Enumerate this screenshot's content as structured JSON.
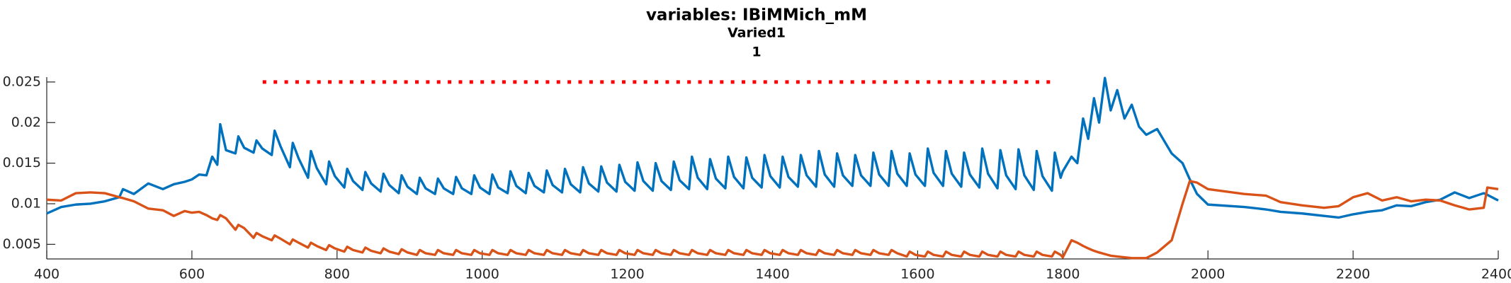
{
  "chart_data": {
    "type": "line",
    "title": "variables: IBiMMich_mM",
    "subtitle_lines": [
      "Varied1",
      "1"
    ],
    "xlim": [
      400,
      2400
    ],
    "xticks": [
      400,
      600,
      800,
      1000,
      1200,
      1400,
      1600,
      1800,
      2000,
      2200,
      2400
    ],
    "ylim": [
      0.0032,
      0.0256
    ],
    "yticks": [
      0.005,
      0.01,
      0.015,
      0.02,
      0.025
    ],
    "grid": false,
    "x": [
      400,
      420,
      440,
      460,
      480,
      500,
      505,
      520,
      540,
      560,
      575,
      590,
      600,
      610,
      620,
      628,
      635,
      639,
      647,
      660,
      664,
      672,
      685,
      689,
      697,
      710,
      714,
      722,
      735,
      739,
      747,
      760,
      764,
      772,
      785,
      789,
      797,
      810,
      814,
      822,
      835,
      839,
      847,
      860,
      864,
      872,
      885,
      889,
      897,
      910,
      914,
      922,
      935,
      939,
      947,
      960,
      964,
      972,
      985,
      989,
      997,
      1010,
      1014,
      1022,
      1035,
      1039,
      1047,
      1060,
      1064,
      1072,
      1085,
      1089,
      1097,
      1110,
      1114,
      1122,
      1135,
      1139,
      1147,
      1160,
      1164,
      1172,
      1185,
      1189,
      1197,
      1210,
      1214,
      1222,
      1235,
      1239,
      1247,
      1260,
      1264,
      1272,
      1285,
      1289,
      1297,
      1310,
      1314,
      1322,
      1335,
      1339,
      1347,
      1360,
      1364,
      1372,
      1385,
      1389,
      1397,
      1410,
      1414,
      1422,
      1435,
      1439,
      1447,
      1460,
      1464,
      1472,
      1485,
      1489,
      1497,
      1510,
      1514,
      1522,
      1535,
      1539,
      1547,
      1560,
      1564,
      1572,
      1585,
      1589,
      1597,
      1610,
      1614,
      1622,
      1635,
      1639,
      1647,
      1660,
      1664,
      1672,
      1685,
      1689,
      1697,
      1710,
      1714,
      1722,
      1735,
      1739,
      1747,
      1760,
      1764,
      1772,
      1785,
      1789,
      1797,
      1800,
      1812,
      1820,
      1828,
      1835,
      1843,
      1850,
      1858,
      1866,
      1875,
      1885,
      1895,
      1905,
      1915,
      1930,
      1950,
      1965,
      1975,
      1985,
      2000,
      2050,
      2080,
      2100,
      2130,
      2160,
      2180,
      2200,
      2220,
      2240,
      2260,
      2280,
      2300,
      2320,
      2340,
      2360,
      2380,
      2385,
      2400
    ],
    "series": [
      {
        "color": "#0072BD",
        "linestyle": "solid",
        "values": [
          0.0088,
          0.0096,
          0.0099,
          0.01,
          0.0103,
          0.0108,
          0.0118,
          0.0112,
          0.0125,
          0.0118,
          0.0124,
          0.0127,
          0.013,
          0.0136,
          0.0135,
          0.0158,
          0.0148,
          0.0198,
          0.0166,
          0.0162,
          0.0183,
          0.0169,
          0.0163,
          0.0178,
          0.0168,
          0.016,
          0.019,
          0.0171,
          0.0145,
          0.0175,
          0.0156,
          0.0132,
          0.0165,
          0.0144,
          0.0124,
          0.0152,
          0.0134,
          0.012,
          0.0143,
          0.0128,
          0.0117,
          0.0139,
          0.0125,
          0.0115,
          0.0137,
          0.0123,
          0.0113,
          0.0135,
          0.0121,
          0.0112,
          0.0132,
          0.0119,
          0.0112,
          0.0131,
          0.0119,
          0.0112,
          0.0133,
          0.0119,
          0.0112,
          0.0135,
          0.012,
          0.0112,
          0.0136,
          0.012,
          0.0113,
          0.014,
          0.0122,
          0.0113,
          0.0138,
          0.0122,
          0.0114,
          0.0141,
          0.0123,
          0.0114,
          0.0143,
          0.0124,
          0.0114,
          0.0145,
          0.0125,
          0.0115,
          0.0146,
          0.0126,
          0.0115,
          0.0148,
          0.0127,
          0.0116,
          0.0151,
          0.0128,
          0.0116,
          0.015,
          0.0128,
          0.0117,
          0.0152,
          0.0129,
          0.0118,
          0.0158,
          0.0132,
          0.0118,
          0.0155,
          0.0131,
          0.0119,
          0.0158,
          0.0133,
          0.0119,
          0.0157,
          0.0132,
          0.012,
          0.016,
          0.0134,
          0.012,
          0.0158,
          0.0133,
          0.0121,
          0.016,
          0.0135,
          0.0121,
          0.0165,
          0.0136,
          0.0121,
          0.0162,
          0.0135,
          0.0122,
          0.016,
          0.0135,
          0.0122,
          0.0163,
          0.0136,
          0.0122,
          0.0165,
          0.0137,
          0.0122,
          0.0162,
          0.0136,
          0.0122,
          0.0168,
          0.0138,
          0.0122,
          0.0165,
          0.0137,
          0.0121,
          0.0163,
          0.0136,
          0.012,
          0.0168,
          0.0137,
          0.0119,
          0.0166,
          0.0135,
          0.0118,
          0.0167,
          0.0135,
          0.0117,
          0.0165,
          0.0134,
          0.0116,
          0.0163,
          0.0132,
          0.014,
          0.0158,
          0.015,
          0.0205,
          0.018,
          0.023,
          0.02,
          0.0255,
          0.0215,
          0.024,
          0.0205,
          0.0222,
          0.0195,
          0.0185,
          0.0192,
          0.0162,
          0.015,
          0.013,
          0.0112,
          0.0099,
          0.0096,
          0.0093,
          0.009,
          0.0088,
          0.0085,
          0.0083,
          0.0087,
          0.009,
          0.0092,
          0.0098,
          0.0097,
          0.0102,
          0.0105,
          0.0114,
          0.0107,
          0.0113,
          0.0111,
          0.0104
        ]
      },
      {
        "color": "#D95319",
        "linestyle": "solid",
        "values": [
          0.0105,
          0.0104,
          0.0113,
          0.0114,
          0.0113,
          0.0108,
          0.0107,
          0.0103,
          0.0094,
          0.0092,
          0.0085,
          0.0091,
          0.0089,
          0.009,
          0.0086,
          0.0082,
          0.008,
          0.0086,
          0.0082,
          0.0068,
          0.0074,
          0.007,
          0.0058,
          0.0064,
          0.006,
          0.0055,
          0.0061,
          0.0057,
          0.005,
          0.0056,
          0.0052,
          0.0046,
          0.0052,
          0.0048,
          0.0043,
          0.0049,
          0.0045,
          0.0041,
          0.0047,
          0.0043,
          0.004,
          0.0046,
          0.0042,
          0.0039,
          0.0045,
          0.0041,
          0.0038,
          0.0044,
          0.004,
          0.0037,
          0.0043,
          0.0039,
          0.0037,
          0.0043,
          0.0039,
          0.0037,
          0.0043,
          0.0039,
          0.0037,
          0.0043,
          0.0039,
          0.0037,
          0.0043,
          0.0039,
          0.0037,
          0.0043,
          0.0039,
          0.0037,
          0.0043,
          0.0039,
          0.0037,
          0.0043,
          0.0039,
          0.0037,
          0.0043,
          0.0039,
          0.0037,
          0.0043,
          0.0039,
          0.0037,
          0.0043,
          0.0039,
          0.0037,
          0.0043,
          0.0039,
          0.0037,
          0.0043,
          0.0039,
          0.0037,
          0.0043,
          0.0039,
          0.0037,
          0.0043,
          0.0039,
          0.0037,
          0.0043,
          0.0039,
          0.0037,
          0.0043,
          0.0039,
          0.0037,
          0.0043,
          0.0039,
          0.0037,
          0.0043,
          0.0039,
          0.0037,
          0.0043,
          0.0039,
          0.0037,
          0.0043,
          0.0039,
          0.0037,
          0.0043,
          0.0039,
          0.0037,
          0.0043,
          0.0039,
          0.0037,
          0.0043,
          0.0039,
          0.0037,
          0.0043,
          0.0039,
          0.0037,
          0.0043,
          0.0039,
          0.0037,
          0.0043,
          0.0039,
          0.0035,
          0.0041,
          0.0037,
          0.0035,
          0.0041,
          0.0037,
          0.0035,
          0.0041,
          0.0037,
          0.0035,
          0.0041,
          0.0037,
          0.0035,
          0.0041,
          0.0037,
          0.0035,
          0.0041,
          0.0037,
          0.0035,
          0.0041,
          0.0037,
          0.0035,
          0.0041,
          0.0037,
          0.0035,
          0.0041,
          0.0037,
          0.0034,
          0.0055,
          0.0052,
          0.0048,
          0.0045,
          0.0042,
          0.004,
          0.0038,
          0.0036,
          0.0035,
          0.0034,
          0.0033,
          0.0033,
          0.0033,
          0.004,
          0.0055,
          0.01,
          0.0128,
          0.0126,
          0.0118,
          0.0112,
          0.011,
          0.0102,
          0.0098,
          0.0095,
          0.0097,
          0.0108,
          0.0113,
          0.0104,
          0.0108,
          0.0103,
          0.0105,
          0.0104,
          0.0098,
          0.0093,
          0.0095,
          0.012,
          0.0118
        ]
      },
      {
        "color": "#FF0000",
        "linestyle": "none",
        "marker": "point",
        "x": [
          700,
          715,
          730,
          745,
          760,
          775,
          790,
          805,
          820,
          835,
          850,
          865,
          880,
          895,
          910,
          925,
          940,
          955,
          970,
          985,
          1000,
          1015,
          1030,
          1045,
          1060,
          1075,
          1090,
          1105,
          1120,
          1135,
          1150,
          1165,
          1180,
          1195,
          1210,
          1225,
          1240,
          1255,
          1270,
          1285,
          1300,
          1315,
          1330,
          1345,
          1360,
          1375,
          1390,
          1405,
          1420,
          1435,
          1450,
          1465,
          1480,
          1495,
          1510,
          1525,
          1540,
          1555,
          1570,
          1585,
          1600,
          1615,
          1630,
          1645,
          1660,
          1675,
          1690,
          1705,
          1720,
          1735,
          1750,
          1765,
          1780
        ],
        "values": [
          0.025,
          0.025,
          0.025,
          0.025,
          0.025,
          0.025,
          0.025,
          0.025,
          0.025,
          0.025,
          0.025,
          0.025,
          0.025,
          0.025,
          0.025,
          0.025,
          0.025,
          0.025,
          0.025,
          0.025,
          0.025,
          0.025,
          0.025,
          0.025,
          0.025,
          0.025,
          0.025,
          0.025,
          0.025,
          0.025,
          0.025,
          0.025,
          0.025,
          0.025,
          0.025,
          0.025,
          0.025,
          0.025,
          0.025,
          0.025,
          0.025,
          0.025,
          0.025,
          0.025,
          0.025,
          0.025,
          0.025,
          0.025,
          0.025,
          0.025,
          0.025,
          0.025,
          0.025,
          0.025,
          0.025,
          0.025,
          0.025,
          0.025,
          0.025,
          0.025,
          0.025,
          0.025,
          0.025,
          0.025,
          0.025,
          0.025,
          0.025,
          0.025,
          0.025,
          0.025,
          0.025,
          0.025,
          0.025
        ]
      }
    ]
  }
}
